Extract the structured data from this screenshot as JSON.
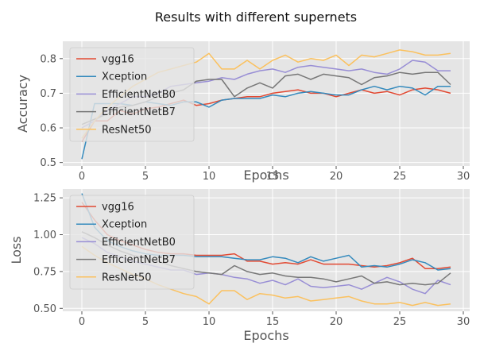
{
  "suptitle": "Results with different supernets",
  "chart_data": [
    {
      "type": "line",
      "xlabel": "Epochs",
      "ylabel": "Accuracy",
      "xlim": [
        -1.5,
        30.5
      ],
      "ylim": [
        0.49,
        0.85
      ],
      "xticks": [
        0,
        5,
        10,
        15,
        20,
        25,
        30
      ],
      "yticks": [
        0.5,
        0.6,
        0.7,
        0.8
      ],
      "ytick_labels": [
        "0.5",
        "0.6",
        "0.7",
        "0.8"
      ],
      "grid": true,
      "legend_position": "upper-left",
      "x": [
        0,
        1,
        2,
        3,
        4,
        5,
        6,
        7,
        8,
        9,
        10,
        11,
        12,
        13,
        14,
        15,
        16,
        17,
        18,
        19,
        20,
        21,
        22,
        23,
        24,
        25,
        26,
        27,
        28,
        29
      ],
      "series": [
        {
          "name": "vgg16",
          "color": "#E24A33",
          "values": [
            0.56,
            0.62,
            0.62,
            0.65,
            0.64,
            0.655,
            0.66,
            0.67,
            0.68,
            0.665,
            0.67,
            0.68,
            0.685,
            0.69,
            0.69,
            0.7,
            0.705,
            0.71,
            0.7,
            0.7,
            0.69,
            0.7,
            0.71,
            0.7,
            0.705,
            0.695,
            0.71,
            0.715,
            0.71,
            0.7
          ]
        },
        {
          "name": "Xception",
          "color": "#348ABD",
          "values": [
            0.51,
            0.67,
            0.67,
            0.67,
            0.665,
            0.675,
            0.67,
            0.665,
            0.675,
            0.675,
            0.66,
            0.68,
            0.685,
            0.685,
            0.685,
            0.695,
            0.69,
            0.7,
            0.705,
            0.7,
            0.695,
            0.695,
            0.71,
            0.72,
            0.71,
            0.72,
            0.715,
            0.695,
            0.72,
            0.72
          ]
        },
        {
          "name": "EfficientNetB0",
          "color": "#988ED5",
          "values": [
            0.6,
            0.62,
            0.65,
            0.67,
            0.69,
            0.69,
            0.7,
            0.72,
            0.725,
            0.73,
            0.735,
            0.745,
            0.74,
            0.755,
            0.765,
            0.77,
            0.76,
            0.775,
            0.78,
            0.775,
            0.77,
            0.765,
            0.77,
            0.76,
            0.755,
            0.77,
            0.795,
            0.79,
            0.765,
            0.765
          ]
        },
        {
          "name": "EfficientNetB7",
          "color": "#777777",
          "values": [
            0.61,
            0.625,
            0.64,
            0.66,
            0.665,
            0.675,
            0.69,
            0.7,
            0.71,
            0.735,
            0.74,
            0.74,
            0.69,
            0.715,
            0.73,
            0.715,
            0.75,
            0.755,
            0.74,
            0.755,
            0.75,
            0.745,
            0.725,
            0.745,
            0.75,
            0.76,
            0.755,
            0.76,
            0.76,
            0.725
          ]
        },
        {
          "name": "ResNet50",
          "color": "#FBC15E",
          "values": [
            0.57,
            0.62,
            0.66,
            0.69,
            0.72,
            0.74,
            0.76,
            0.77,
            0.78,
            0.79,
            0.815,
            0.77,
            0.77,
            0.795,
            0.77,
            0.795,
            0.81,
            0.79,
            0.8,
            0.795,
            0.81,
            0.78,
            0.81,
            0.805,
            0.815,
            0.825,
            0.82,
            0.81,
            0.81,
            0.815
          ]
        }
      ]
    },
    {
      "type": "line",
      "xlabel": "Epochs",
      "ylabel": "Loss",
      "xlim": [
        -1.5,
        30.5
      ],
      "ylim": [
        0.48,
        1.31
      ],
      "xticks": [
        0,
        5,
        10,
        15,
        20,
        25,
        30
      ],
      "yticks": [
        0.5,
        0.75,
        1.0,
        1.25
      ],
      "ytick_labels": [
        "0.50",
        "0.75",
        "1.00",
        "1.25"
      ],
      "grid": true,
      "legend_position": "upper-left",
      "x": [
        0,
        1,
        2,
        3,
        4,
        5,
        6,
        7,
        8,
        9,
        10,
        11,
        12,
        13,
        14,
        15,
        16,
        17,
        18,
        19,
        20,
        21,
        22,
        23,
        24,
        25,
        26,
        27,
        28,
        29
      ],
      "series": [
        {
          "name": "vgg16",
          "color": "#E24A33",
          "values": [
            1.22,
            1.1,
            1.0,
            0.96,
            0.93,
            0.9,
            0.88,
            0.87,
            0.87,
            0.86,
            0.86,
            0.86,
            0.87,
            0.82,
            0.82,
            0.8,
            0.81,
            0.8,
            0.83,
            0.8,
            0.8,
            0.8,
            0.79,
            0.78,
            0.79,
            0.81,
            0.84,
            0.77,
            0.77,
            0.78
          ]
        },
        {
          "name": "Xception",
          "color": "#348ABD",
          "values": [
            1.28,
            1.05,
            0.96,
            0.92,
            0.89,
            0.87,
            0.86,
            0.86,
            0.86,
            0.85,
            0.85,
            0.85,
            0.84,
            0.83,
            0.83,
            0.85,
            0.84,
            0.81,
            0.85,
            0.82,
            0.84,
            0.86,
            0.78,
            0.79,
            0.78,
            0.8,
            0.83,
            0.81,
            0.76,
            0.77
          ]
        },
        {
          "name": "EfficientNetB0",
          "color": "#988ED5",
          "values": [
            0.98,
            0.94,
            0.88,
            0.85,
            0.82,
            0.8,
            0.78,
            0.76,
            0.76,
            0.73,
            0.74,
            0.73,
            0.71,
            0.7,
            0.67,
            0.69,
            0.66,
            0.7,
            0.65,
            0.64,
            0.65,
            0.66,
            0.63,
            0.67,
            0.71,
            0.68,
            0.63,
            0.6,
            0.69,
            0.66
          ]
        },
        {
          "name": "EfficientNetB7",
          "color": "#777777",
          "values": [
            1.02,
            0.98,
            0.93,
            0.89,
            0.86,
            0.84,
            0.82,
            0.79,
            0.77,
            0.75,
            0.74,
            0.73,
            0.79,
            0.75,
            0.73,
            0.74,
            0.72,
            0.71,
            0.71,
            0.7,
            0.68,
            0.7,
            0.72,
            0.67,
            0.68,
            0.66,
            0.67,
            0.66,
            0.67,
            0.74
          ]
        },
        {
          "name": "ResNet50",
          "color": "#FBC15E",
          "values": [
            0.92,
            0.86,
            0.81,
            0.77,
            0.73,
            0.7,
            0.66,
            0.63,
            0.6,
            0.58,
            0.53,
            0.62,
            0.62,
            0.56,
            0.6,
            0.59,
            0.57,
            0.58,
            0.55,
            0.56,
            0.57,
            0.58,
            0.55,
            0.53,
            0.53,
            0.54,
            0.52,
            0.54,
            0.52,
            0.53
          ]
        }
      ]
    }
  ]
}
